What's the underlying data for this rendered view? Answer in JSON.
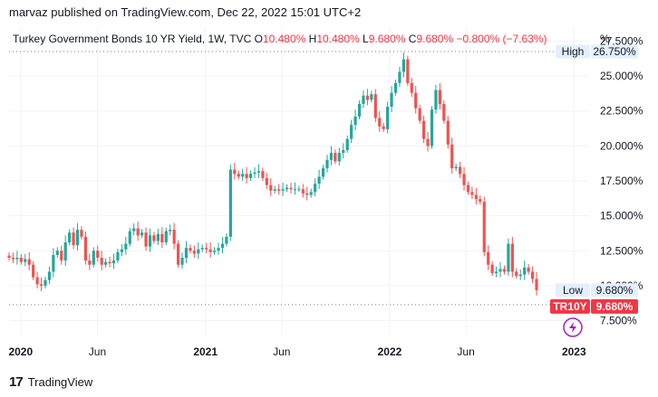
{
  "header": {
    "publisher_line": "marvaz published on TradingView.com, Dec 22, 2022 15:01 UTC+2"
  },
  "legend": {
    "symbol": "Turkey Government Bonds 10 YR Yield, 1W, TVC",
    "open_key": "O",
    "open": "10.480%",
    "high_key": "H",
    "high": "10.480%",
    "low_key": "L",
    "low": "9.680%",
    "close_key": "C",
    "close": "9.680%",
    "change": "−0.800% (−7.63%)"
  },
  "axis_unit": "%",
  "markers": {
    "high_label": "High",
    "high_value": "26.750%",
    "low_label": "Low",
    "low_value": "9.680%",
    "ticker": "TR10Y",
    "ticker_value": "9.680%"
  },
  "footer": {
    "brand": "TradingView",
    "logo_text": "17"
  },
  "colors": {
    "up": "#26a69a",
    "down": "#ef5350",
    "ticker_bg": "#f23645",
    "grid": "#f0f3fa",
    "accent": "#9c27b0"
  },
  "chart_data": {
    "type": "candlestick",
    "title": "Turkey Government Bonds 10 YR Yield, 1W, TVC",
    "ylabel": "%",
    "ylim": [
      6.5,
      28.5
    ],
    "y_ticks": [
      "7.500%",
      "10.000%",
      "12.500%",
      "15.000%",
      "17.500%",
      "20.000%",
      "22.500%",
      "25.000%",
      "27.500%"
    ],
    "y_tick_values": [
      7.5,
      10.0,
      12.5,
      15.0,
      17.5,
      20.0,
      22.5,
      25.0,
      27.5
    ],
    "x_tick_labels": [
      "2020",
      "Jun",
      "2021",
      "Jun",
      "2022",
      "Jun",
      "2023"
    ],
    "x_tick_dates": [
      "2020-01-01",
      "2020-06-01",
      "2021-01-01",
      "2021-06-01",
      "2022-01-01",
      "2022-06-01",
      "2023-01-01"
    ],
    "x_range": [
      "2019-12-09",
      "2023-01-31"
    ],
    "high_line": 26.75,
    "low_line": 9.68,
    "last_value": 9.68,
    "closes": [
      12.0,
      11.9,
      12.0,
      11.7,
      11.9,
      11.5,
      10.6,
      10.1,
      10.0,
      10.4,
      11.0,
      12.2,
      12.5,
      11.8,
      13.1,
      13.8,
      12.9,
      14.0,
      13.5,
      11.8,
      11.5,
      12.5,
      12.0,
      11.5,
      11.7,
      11.6,
      11.8,
      12.4,
      12.6,
      13.0,
      13.9,
      14.1,
      13.6,
      13.8,
      12.8,
      13.6,
      13.2,
      13.7,
      13.1,
      13.9,
      14.0,
      13.0,
      11.5,
      12.0,
      12.7,
      12.5,
      12.3,
      12.6,
      12.7,
      12.6,
      12.4,
      12.5,
      12.7,
      13.0,
      13.5,
      18.3,
      18.0,
      17.8,
      18.0,
      17.7,
      18.0,
      18.1,
      18.2,
      17.7,
      17.2,
      16.8,
      16.9,
      16.8,
      16.9,
      17.0,
      16.9,
      16.9,
      16.9,
      16.6,
      16.5,
      16.7,
      17.3,
      17.8,
      18.4,
      19.0,
      19.5,
      18.9,
      19.5,
      19.7,
      20.5,
      21.5,
      22.1,
      23.0,
      23.6,
      23.3,
      23.7,
      22.0,
      21.4,
      21.2,
      22.8,
      23.8,
      24.5,
      25.3,
      26.2,
      24.5,
      23.8,
      22.7,
      21.8,
      20.5,
      20.0,
      22.6,
      24.0,
      23.0,
      21.8,
      20.1,
      18.4,
      18.5,
      18.0,
      17.2,
      16.7,
      16.5,
      16.2,
      16.0,
      12.4,
      11.5,
      10.9,
      11.0,
      11.2,
      11.0,
      13.0,
      11.0,
      10.7,
      10.8,
      11.3,
      11.0,
      10.48,
      9.68
    ]
  }
}
